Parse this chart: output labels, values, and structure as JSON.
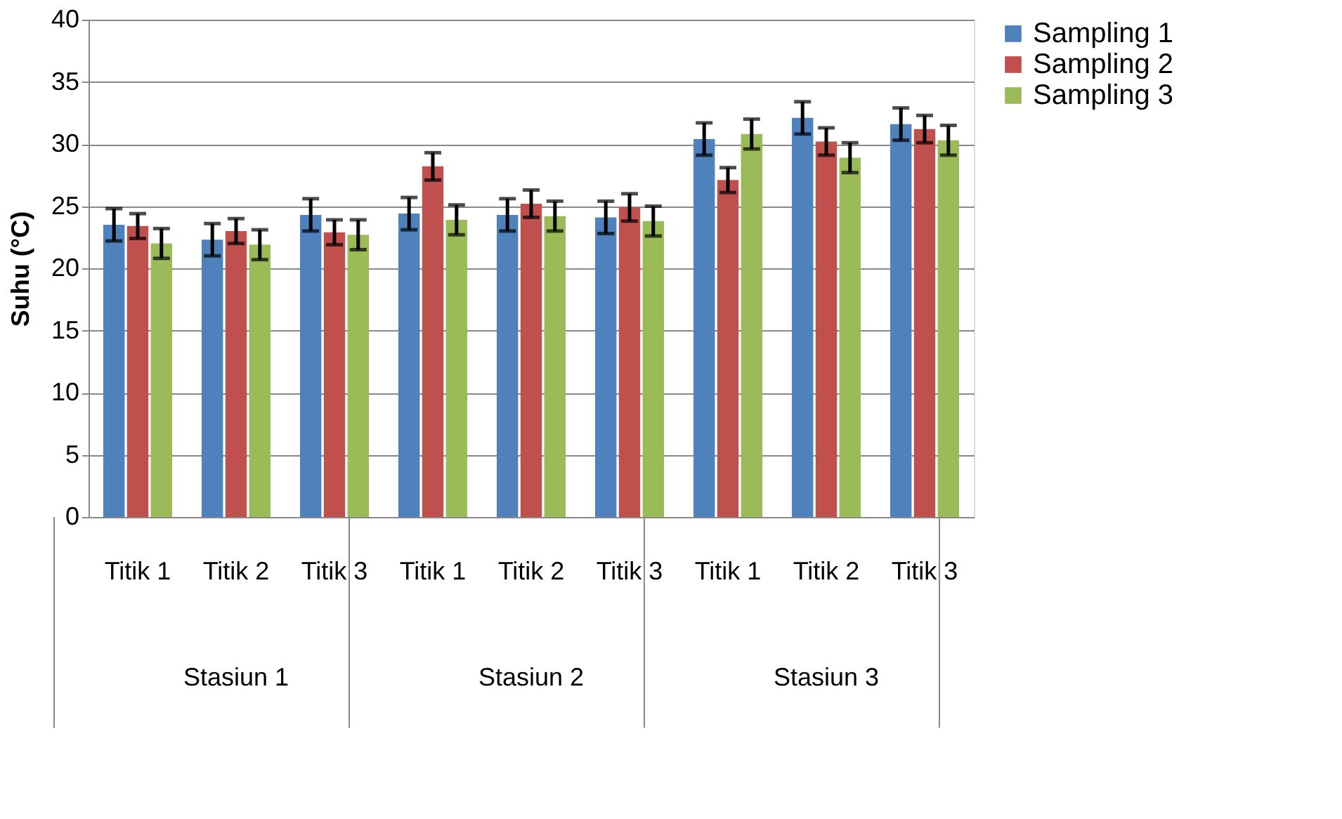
{
  "chart_data": {
    "type": "bar",
    "ylabel": "Suhu (°C)",
    "categories": [
      "Titik 1",
      "Titik 2",
      "Titik 3",
      "Titik 1",
      "Titik 2",
      "Titik 3",
      "Titik 1",
      "Titik 2",
      "Titik 3"
    ],
    "annotations": [
      "Stasiun 1",
      "Stasiun 2",
      "Stasiun 3"
    ],
    "series": [
      {
        "name": "Sampling 1",
        "color": "#4f81bd",
        "values": [
          23.5,
          22.3,
          24.3,
          24.4,
          24.3,
          24.1,
          30.4,
          32.1,
          31.6
        ],
        "errors": [
          1.3,
          1.3,
          1.3,
          1.3,
          1.3,
          1.3,
          1.3,
          1.3,
          1.3
        ]
      },
      {
        "name": "Sampling 2",
        "color": "#c0504d",
        "values": [
          23.4,
          23.0,
          22.9,
          28.2,
          25.2,
          24.9,
          27.1,
          30.2,
          31.2
        ],
        "errors": [
          1.0,
          1.0,
          1.0,
          1.1,
          1.1,
          1.1,
          1.0,
          1.1,
          1.1
        ]
      },
      {
        "name": "Sampling 3",
        "color": "#9bbb59",
        "values": [
          22.0,
          21.9,
          22.7,
          23.9,
          24.2,
          23.8,
          30.8,
          28.9,
          30.3
        ],
        "errors": [
          1.2,
          1.2,
          1.2,
          1.2,
          1.2,
          1.2,
          1.2,
          1.2,
          1.2
        ]
      }
    ],
    "ylim": [
      0,
      40
    ],
    "yticks": [
      0,
      5,
      10,
      15,
      20,
      25,
      30,
      35,
      40
    ],
    "grid": "y",
    "legend": "right"
  }
}
